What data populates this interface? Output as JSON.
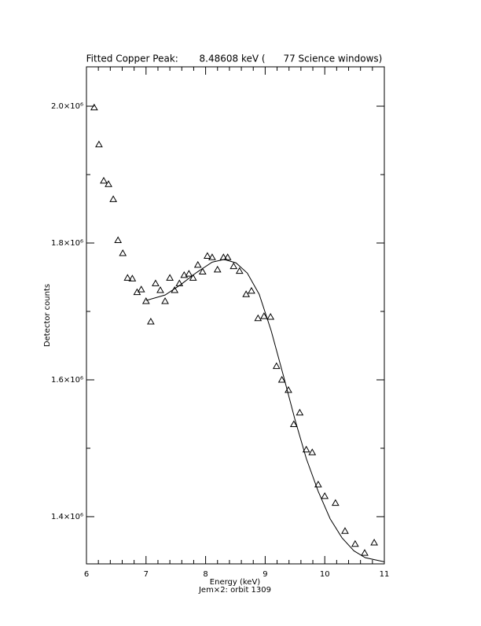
{
  "chart_data": {
    "type": "scatter",
    "title": "Fitted Copper Peak:       8.48608 keV (      77 Science windows)",
    "x_label": "Energy (keV)",
    "subtitle": "Jem×2: orbit 1309",
    "y_label": "Detector counts",
    "xlim": [
      6,
      11
    ],
    "ylim": [
      1331000,
      2057500
    ],
    "xticks": [
      6,
      7,
      8,
      9,
      10,
      11
    ],
    "xminorticks": [
      6.2,
      6.4,
      6.6,
      6.8,
      7.2,
      7.4,
      7.6,
      7.8,
      8.2,
      8.4,
      8.6,
      8.8,
      9.2,
      9.4,
      9.6,
      9.8,
      10.2,
      10.4,
      10.6,
      10.8
    ],
    "yticks": [
      {
        "value": 1400000,
        "label": "1.4×10⁶"
      },
      {
        "value": 1600000,
        "label": "1.6×10⁶"
      },
      {
        "value": 1800000,
        "label": "1.8×10⁶"
      },
      {
        "value": 2000000,
        "label": "2.0×10⁶"
      }
    ],
    "yminorticks": [
      1500000,
      1700000,
      1900000
    ],
    "color": "#000000",
    "series": [
      {
        "x": [
          6.13,
          6.21,
          6.29,
          6.37,
          6.45,
          6.53,
          6.61,
          6.69,
          6.77,
          6.85,
          6.92,
          7.0,
          7.08,
          7.16,
          7.24,
          7.32,
          7.4,
          7.48,
          7.56,
          7.64,
          7.72,
          7.79,
          7.87,
          7.95,
          8.03,
          8.11,
          8.2,
          8.3,
          8.37,
          8.47,
          8.57,
          8.68,
          8.77,
          8.88,
          8.98,
          9.09,
          9.19,
          9.28,
          9.39,
          9.48,
          9.58,
          9.69,
          9.79,
          9.89,
          10.0,
          10.18,
          10.34,
          10.51,
          10.67,
          10.83
        ],
        "values": [
          1998000,
          1944000,
          1891000,
          1886000,
          1864000,
          1804000,
          1785000,
          1749000,
          1748000,
          1728000,
          1732000,
          1715000,
          1685000,
          1741000,
          1731000,
          1715000,
          1749000,
          1731000,
          1741000,
          1753000,
          1755000,
          1749000,
          1768000,
          1758000,
          1781000,
          1779000,
          1761000,
          1779000,
          1779000,
          1766000,
          1759000,
          1725000,
          1730000,
          1690000,
          1693000,
          1692000,
          1620000,
          1600000,
          1585000,
          1535000,
          1552000,
          1498000,
          1494000,
          1447000,
          1430000,
          1420000,
          1379000,
          1360000,
          1347000,
          1362000
        ]
      },
      {
        "x": [
          7.0,
          7.32,
          7.58,
          7.85,
          8.11,
          8.31,
          8.51,
          8.7,
          8.9,
          9.1,
          9.3,
          9.5,
          9.69,
          9.89,
          10.09,
          10.29,
          10.49,
          10.68,
          11.0
        ],
        "values": [
          1716000,
          1724000,
          1739000,
          1757000,
          1772000,
          1776000,
          1771000,
          1756000,
          1725000,
          1672000,
          1608000,
          1542000,
          1485000,
          1437000,
          1397000,
          1369000,
          1350000,
          1340000,
          1334000
        ]
      }
    ]
  }
}
